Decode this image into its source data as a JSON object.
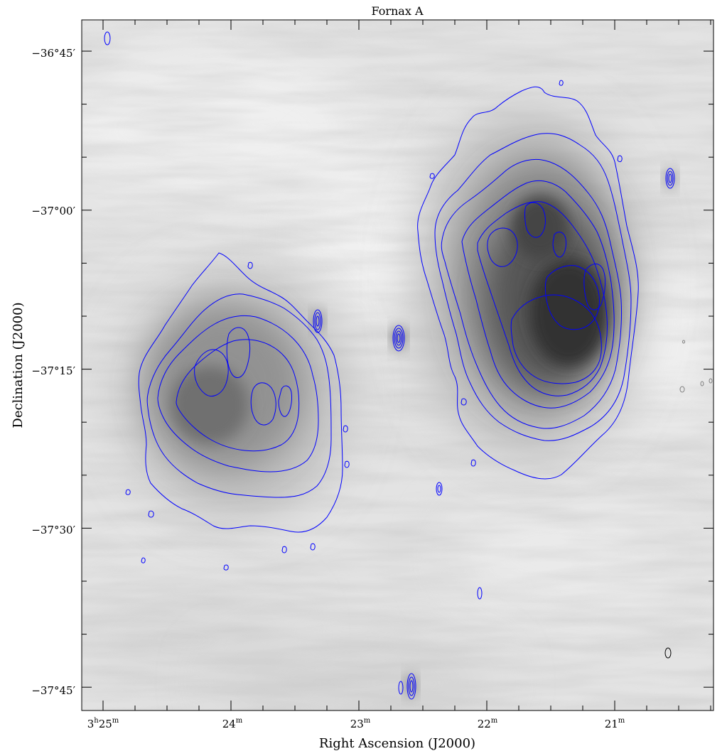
{
  "figure": {
    "title": "Fornax A",
    "x_axis_label": "Right Ascension (J2000)",
    "y_axis_label": "Declination (J2000)"
  },
  "x_ticks": [
    {
      "main": "3",
      "sup1": "h",
      "main2": "25",
      "sup2": "m"
    },
    {
      "main": "24",
      "sup2": "m"
    },
    {
      "main": "23",
      "sup2": "m"
    },
    {
      "main": "22",
      "sup2": "m"
    },
    {
      "main": "21",
      "sup2": "m"
    }
  ],
  "y_ticks": [
    "−36°45′",
    "−37°00′",
    "−37°15′",
    "−37°30′",
    "−37°45′"
  ],
  "colors": {
    "contour": "#0000ff",
    "frame": "#000000",
    "background_gray": "#e4e4e4",
    "lobe_dark": "#1a1a1a"
  }
}
